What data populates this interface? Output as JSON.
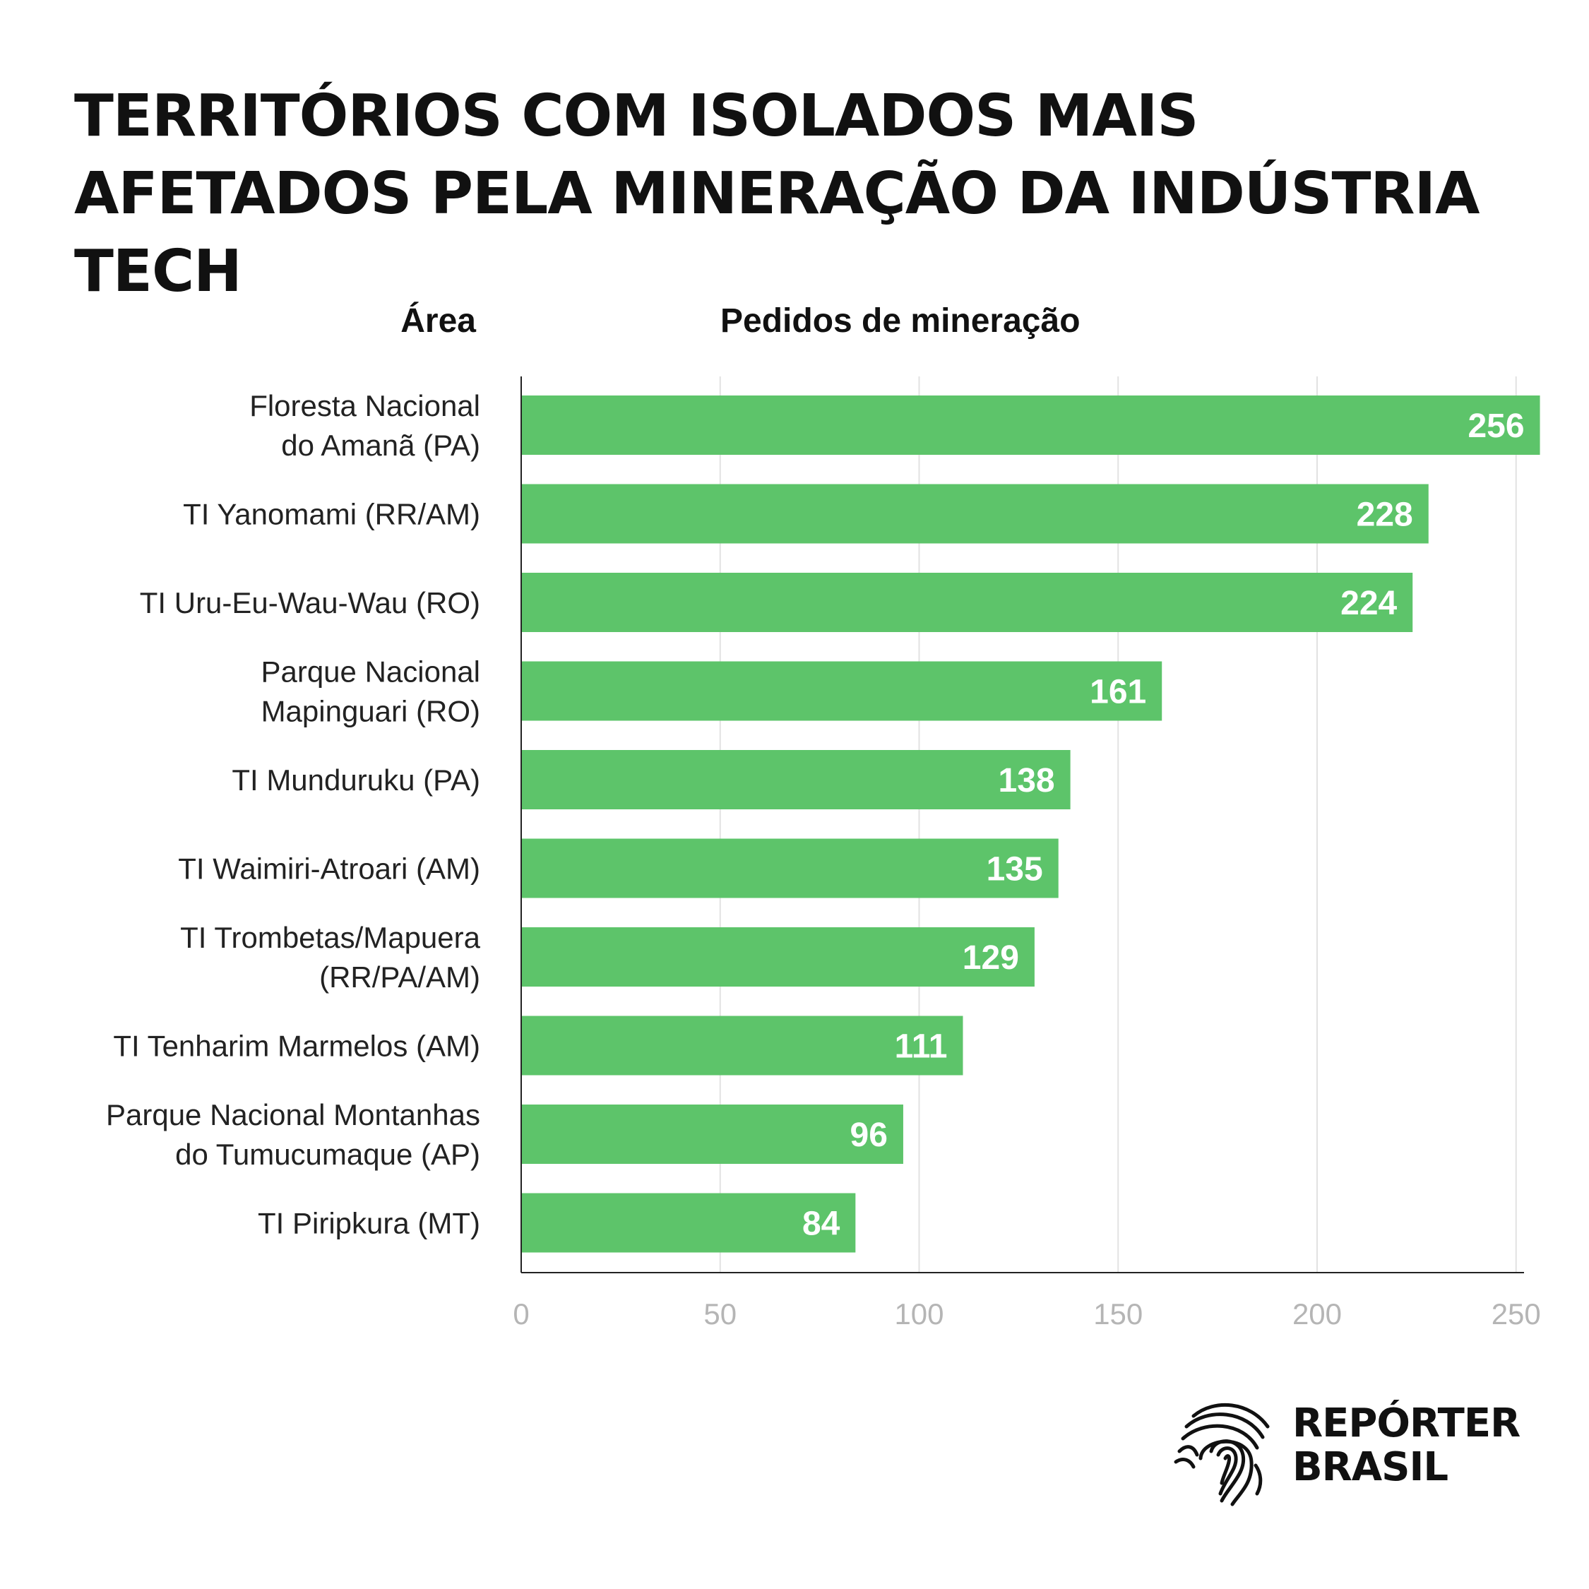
{
  "title": "TERRITÓRIOS COM ISOLADOS MAIS AFETADOS PELA MINERAÇÃO DA INDÚSTRIA TECH",
  "headers": {
    "area": "Área",
    "value": "Pedidos de mineração"
  },
  "logo": {
    "line1": "REPÓRTER",
    "line2": "BRASIL",
    "icon": "fingerprint-brazil-map-icon"
  },
  "colors": {
    "bar": "#5dc46a",
    "axis": "#222222",
    "grid": "#e2e2e2",
    "tick": "#b5b5b5"
  },
  "chart_data": {
    "type": "bar",
    "orientation": "horizontal",
    "categories": [
      [
        "Floresta Nacional",
        "do Amanã (PA)"
      ],
      [
        "TI Yanomami (RR/AM)"
      ],
      [
        "TI Uru-Eu-Wau-Wau (RO)"
      ],
      [
        "Parque Nacional",
        "Mapinguari (RO)"
      ],
      [
        "TI Munduruku (PA)"
      ],
      [
        "TI Waimiri-Atroari (AM)"
      ],
      [
        "TI Trombetas/Mapuera",
        "(RR/PA/AM)"
      ],
      [
        "TI Tenharim Marmelos (AM)"
      ],
      [
        "Parque Nacional Montanhas",
        "do Tumucumaque (AP)"
      ],
      [
        "TI Piripkura (MT)"
      ]
    ],
    "values": [
      256,
      228,
      224,
      161,
      138,
      135,
      129,
      111,
      96,
      84
    ],
    "xlim": [
      0,
      252
    ],
    "xticks": [
      0,
      50,
      100,
      150,
      200,
      250
    ],
    "grid": true,
    "legend": "none"
  }
}
